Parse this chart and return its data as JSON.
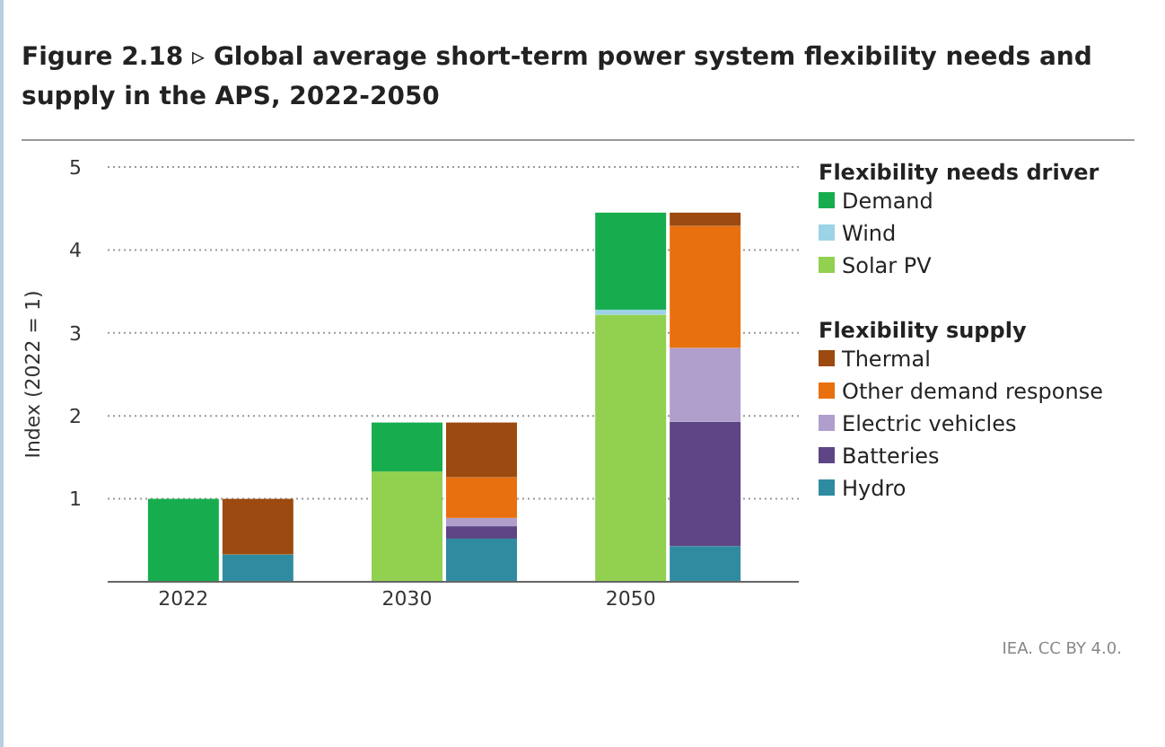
{
  "chart_data": {
    "type": "bar",
    "title": "Figure 2.18 ▹ Global average short-term power system flexibility needs and supply in the APS, 2022-2050",
    "ylabel": "Index (2022 = 1)",
    "categories": [
      "2022",
      null,
      "2030",
      null,
      "2050",
      null
    ],
    "stacked": true,
    "legend_title": [
      "Flexibility needs driver",
      "Flexibility supply"
    ],
    "series": [
      {
        "name": "Solar PV",
        "color": "#92d050",
        "values": [
          0,
          null,
          1.33,
          null,
          3.22,
          null
        ]
      },
      {
        "name": "Wind",
        "color": "#9dd3e6",
        "values": [
          0,
          null,
          0,
          null,
          0.06,
          null
        ]
      },
      {
        "name": "Demand",
        "color": "#17ad4f",
        "values": [
          1.0,
          null,
          0.59,
          null,
          1.17,
          null
        ]
      },
      {
        "name": "Hydro",
        "color": "#2f8ca0",
        "values": [
          null,
          0.33,
          null,
          0.52,
          null,
          0.43
        ]
      },
      {
        "name": "Batteries",
        "color": "#5e4585",
        "values": [
          null,
          0,
          null,
          0.15,
          null,
          1.5
        ]
      },
      {
        "name": "Electric vehicles",
        "color": "#b09fcc",
        "values": [
          null,
          0,
          null,
          0.1,
          null,
          0.89
        ]
      },
      {
        "name": "Other demand response",
        "color": "#e8700e",
        "values": [
          null,
          0,
          null,
          0.49,
          null,
          1.47
        ]
      },
      {
        "name": "Thermal",
        "color": "#9c4a0f",
        "values": [
          null,
          0.67,
          null,
          0.66,
          null,
          0.16
        ]
      }
    ],
    "ylim": [
      0,
      5
    ],
    "yticks": [
      1,
      2,
      3,
      4,
      5
    ],
    "grid": "y",
    "legend": "right",
    "annotations": [
      "IEA. CC BY 4.0."
    ]
  }
}
